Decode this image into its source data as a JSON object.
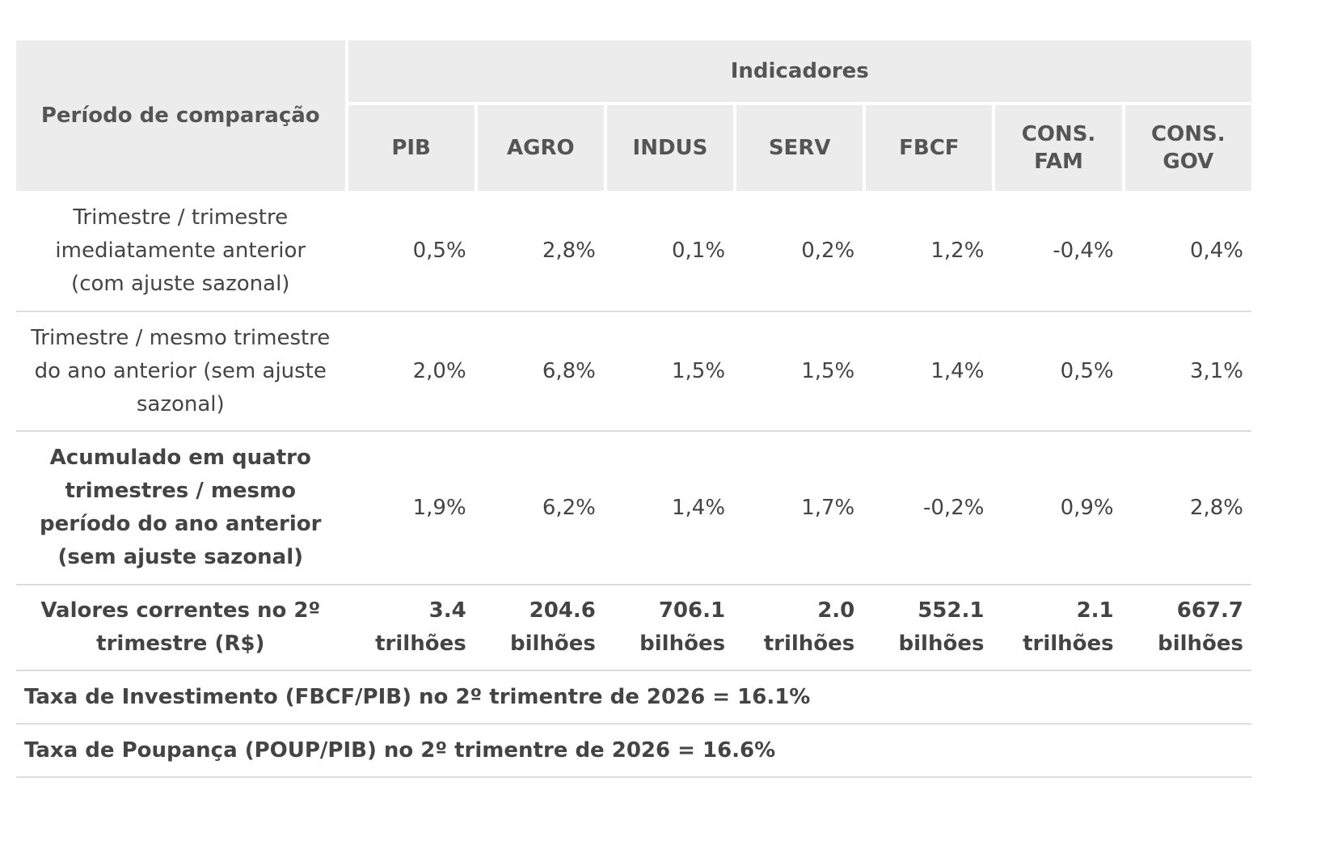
{
  "header": {
    "period_label": "Período de comparação",
    "indicators_label": "Indicadores",
    "columns": [
      "PIB",
      "AGRO",
      "INDUS",
      "SERV",
      "FBCF",
      "CONS. FAM",
      "CONS. GOV"
    ]
  },
  "rows": [
    {
      "label": "Trimestre / trimestre imediatamente anterior (com ajuste sazonal)",
      "values": [
        "0,5%",
        "2,8%",
        "0,1%",
        "0,2%",
        "1,2%",
        "-0,4%",
        "0,4%"
      ]
    },
    {
      "label": "Trimestre / mesmo trimestre do ano anterior (sem ajuste sazonal)",
      "values": [
        "2,0%",
        "6,8%",
        "1,5%",
        "1,5%",
        "1,4%",
        "0,5%",
        "3,1%"
      ]
    },
    {
      "label": "Acumulado em quatro trimestres / mesmo período do ano anterior (sem ajuste sazonal)",
      "values": [
        "1,9%",
        "6,2%",
        "1,4%",
        "1,7%",
        "-0,2%",
        "0,9%",
        "2,8%"
      ]
    },
    {
      "label": "Valores correntes no 2º trimestre (R$)",
      "values": [
        "3.4 trilhões",
        "204.6 bilhões",
        "706.1 bilhões",
        "2.0 trilhões",
        "552.1 bilhões",
        "2.1 trilhões",
        "667.7 bilhões"
      ]
    }
  ],
  "footer": {
    "investment_rate": "Taxa de Investimento (FBCF/PIB) no 2º trimentre de 2026 = 16.1%",
    "savings_rate": "Taxa de Poupança (POUP/PIB) no 2º trimentre de 2026 = 16.6%"
  }
}
